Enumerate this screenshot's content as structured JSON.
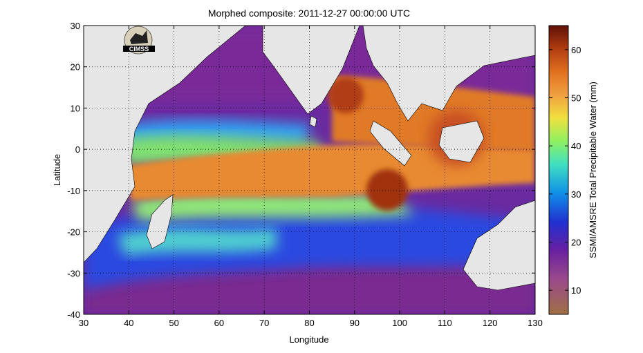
{
  "chart_data": {
    "type": "heatmap",
    "title": "Morphed composite: 2011-12-27 00:00:00 UTC",
    "xlabel": "Longitude",
    "ylabel": "Latitude",
    "xlim": [
      30,
      130
    ],
    "ylim": [
      -40,
      30
    ],
    "x_ticks": [
      "30",
      "40",
      "50",
      "60",
      "70",
      "80",
      "90",
      "100",
      "110",
      "120",
      "130"
    ],
    "y_ticks": [
      "30",
      "20",
      "10",
      "0",
      "-10",
      "-20",
      "-30",
      "-40"
    ],
    "grid": true,
    "grid_style": "dotted",
    "colorbar": {
      "label": "SSMI/AMSRE Total Precipitable Water (mm)",
      "range": [
        5,
        65
      ],
      "ticks": [
        "60",
        "50",
        "40",
        "30",
        "20",
        "10"
      ]
    },
    "land_color": "#e6e6e6",
    "logo_text": "CIMSS",
    "fields": [
      {
        "feature": "ITCZ moist band",
        "lon_range": [
          40,
          130
        ],
        "lat_center": -6,
        "tpw_mm": 55
      },
      {
        "feature": "Bay of Bengal cyclone",
        "lon": 86,
        "lat": 12,
        "tpw_mm": 60
      },
      {
        "feature": "Cyclone south of Sumatra",
        "lon": 96,
        "lat": -9,
        "tpw_mm": 62
      },
      {
        "feature": "Maritime Continent moisture",
        "lon_range": [
          100,
          130
        ],
        "lat_range": [
          -8,
          17
        ],
        "tpw_mm": 55
      },
      {
        "feature": "Arabian Sea dry air",
        "lon_range": [
          55,
          75
        ],
        "lat_range": [
          5,
          25
        ],
        "tpw_mm": 15
      },
      {
        "feature": "Southern Indian Ocean dry air",
        "lon_range": [
          30,
          130
        ],
        "lat_range": [
          -40,
          -25
        ],
        "tpw_mm": 15
      }
    ]
  }
}
